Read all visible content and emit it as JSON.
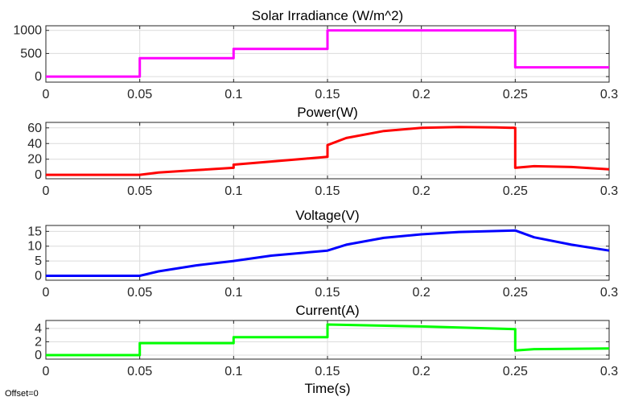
{
  "figure": {
    "offset_label": "Offset=0"
  },
  "chart_data": [
    {
      "type": "line",
      "title": "Solar Irradiance  (W/m^2)",
      "xlabel": "",
      "ylabel": "",
      "xlim": [
        0,
        0.3
      ],
      "ylim": [
        -120,
        1100
      ],
      "xticks": [
        0,
        0.05,
        0.1,
        0.15,
        0.2,
        0.25,
        0.3
      ],
      "xtick_labels": [
        "0",
        "0.05",
        "0.1",
        "0.15",
        "0.2",
        "0.25",
        "0.3"
      ],
      "yticks": [
        0,
        500,
        1000
      ],
      "ytick_labels": [
        "0",
        "500",
        "1000"
      ],
      "grid": true,
      "series": [
        {
          "color": "#ff00ff",
          "x": [
            0,
            0.05,
            0.05,
            0.1,
            0.1,
            0.15,
            0.15,
            0.25,
            0.25,
            0.3
          ],
          "y": [
            0,
            0,
            400,
            400,
            600,
            600,
            1000,
            1000,
            200,
            200
          ]
        }
      ]
    },
    {
      "type": "line",
      "title": "Power(W)",
      "xlabel": "",
      "ylabel": "",
      "xlim": [
        0,
        0.3
      ],
      "ylim": [
        -5,
        67
      ],
      "xticks": [
        0,
        0.05,
        0.1,
        0.15,
        0.2,
        0.25,
        0.3
      ],
      "xtick_labels": [
        "0",
        "0.05",
        "0.1",
        "0.15",
        "0.2",
        "0.25",
        "0.3"
      ],
      "yticks": [
        0,
        20,
        40,
        60
      ],
      "ytick_labels": [
        "0",
        "20",
        "40",
        "60"
      ],
      "grid": true,
      "series": [
        {
          "color": "#ff0000",
          "x": [
            0,
            0.05,
            0.06,
            0.08,
            0.1,
            0.1,
            0.12,
            0.14,
            0.15,
            0.15,
            0.16,
            0.18,
            0.2,
            0.22,
            0.24,
            0.25,
            0.25,
            0.26,
            0.28,
            0.3
          ],
          "y": [
            0,
            0,
            3,
            6,
            9,
            13,
            17,
            21,
            23,
            38,
            47,
            56,
            60,
            61,
            60.5,
            60,
            9,
            11,
            10,
            7
          ]
        }
      ]
    },
    {
      "type": "line",
      "title": "Voltage(V)",
      "xlabel": "",
      "ylabel": "",
      "xlim": [
        0,
        0.3
      ],
      "ylim": [
        -1.5,
        17
      ],
      "xticks": [
        0,
        0.05,
        0.1,
        0.15,
        0.2,
        0.25,
        0.3
      ],
      "xtick_labels": [
        "0",
        "0.05",
        "0.1",
        "0.15",
        "0.2",
        "0.25",
        "0.3"
      ],
      "yticks": [
        0,
        5,
        10,
        15
      ],
      "ytick_labels": [
        "0",
        "5",
        "10",
        "15"
      ],
      "grid": true,
      "series": [
        {
          "color": "#0000ff",
          "x": [
            0,
            0.05,
            0.06,
            0.08,
            0.1,
            0.12,
            0.15,
            0.16,
            0.18,
            0.2,
            0.22,
            0.25,
            0.26,
            0.28,
            0.3
          ],
          "y": [
            0,
            0,
            1.5,
            3.5,
            5,
            6.8,
            8.5,
            10.5,
            12.8,
            14,
            14.8,
            15.3,
            13,
            10.5,
            8.5
          ]
        }
      ]
    },
    {
      "type": "line",
      "title": "Current(A)",
      "xlabel": "Time(s)",
      "ylabel": "",
      "xlim": [
        0,
        0.3
      ],
      "ylim": [
        -0.6,
        5.2
      ],
      "xticks": [
        0,
        0.05,
        0.1,
        0.15,
        0.2,
        0.25,
        0.3
      ],
      "xtick_labels": [
        "0",
        "0.05",
        "0.1",
        "0.15",
        "0.2",
        "0.25",
        "0.3"
      ],
      "yticks": [
        0,
        2,
        4
      ],
      "ytick_labels": [
        "0",
        "2",
        "4"
      ],
      "grid": true,
      "series": [
        {
          "color": "#00ff00",
          "x": [
            0,
            0.05,
            0.05,
            0.1,
            0.1,
            0.15,
            0.15,
            0.2,
            0.25,
            0.25,
            0.26,
            0.3
          ],
          "y": [
            0,
            0,
            1.8,
            1.8,
            2.7,
            2.7,
            4.6,
            4.3,
            3.9,
            0.7,
            0.9,
            1.0
          ]
        }
      ]
    }
  ]
}
